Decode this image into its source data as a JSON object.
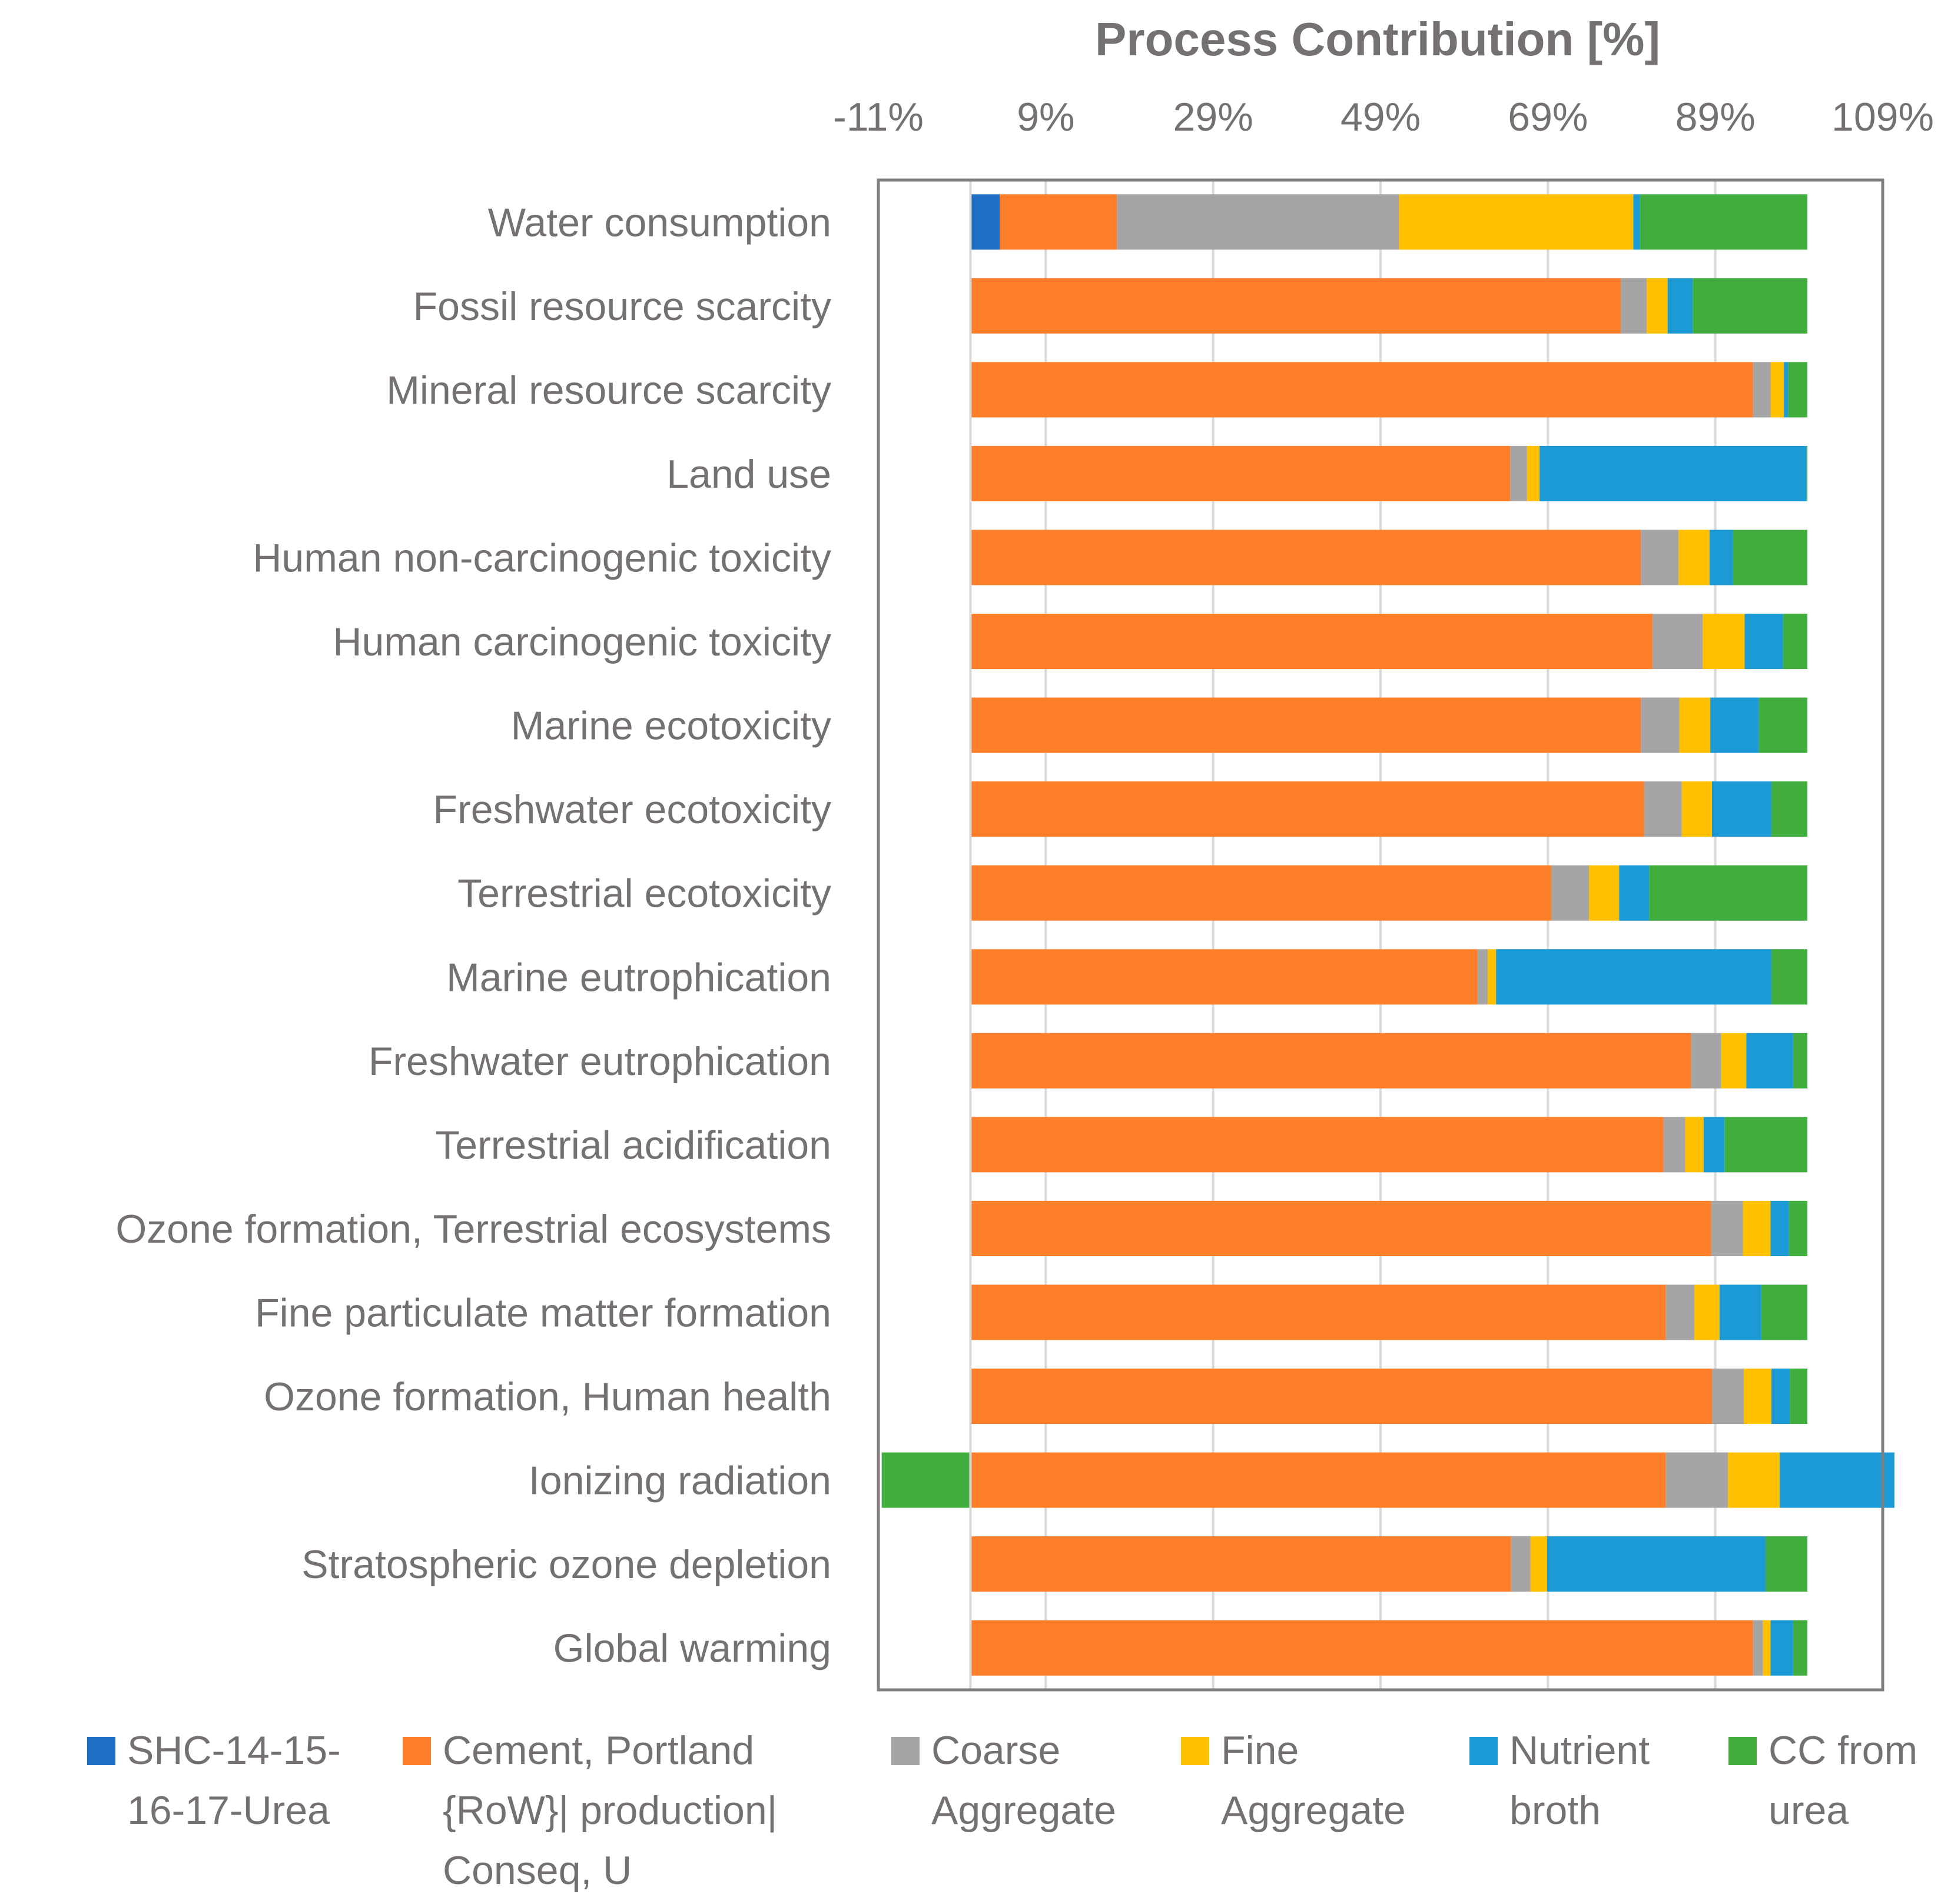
{
  "chart_data": {
    "type": "bar",
    "orientation": "horizontal",
    "stacked": true,
    "title": "Process Contribution [%]",
    "xlabel": "Process Contribution [%]",
    "ylabel": "",
    "x_axis_position": "top",
    "xlim": [
      -11,
      109
    ],
    "xticks": [
      -11,
      9,
      29,
      49,
      69,
      89,
      109
    ],
    "xtick_labels": [
      "-11%",
      "9%",
      "29%",
      "49%",
      "69%",
      "89%",
      "109%"
    ],
    "grid": true,
    "legend_position": "bottom",
    "categories": [
      "Water consumption",
      "Fossil resource scarcity",
      "Mineral resource scarcity",
      "Land use",
      "Human non-carcinogenic toxicity",
      "Human carcinogenic toxicity",
      "Marine ecotoxicity",
      "Freshwater ecotoxicity",
      "Terrestrial ecotoxicity",
      "Marine eutrophication",
      "Freshwater eutrophication",
      "Terrestrial acidification",
      "Ozone formation, Terrestrial ecosystems",
      "Fine particulate matter formation",
      "Ozone formation, Human health",
      "Ionizing radiation",
      "Stratospheric ozone depletion",
      "Global warming"
    ],
    "series": [
      {
        "name": "SHC-14-15-16-17-Urea",
        "color": "#1f6fc5",
        "values": [
          3.5,
          0.1,
          0.1,
          0.1,
          0.1,
          0.1,
          0.1,
          0.1,
          0.1,
          0.1,
          0.1,
          0.1,
          0.1,
          0.1,
          0.1,
          0.1,
          0.1,
          0.1
        ]
      },
      {
        "name": "Cement, Portland {RoW}| production| Conseq, U",
        "color": "#fe7f2a",
        "values": [
          14,
          77.6,
          93.4,
          64.4,
          80,
          81.4,
          80,
          80.4,
          69.3,
          60.5,
          86,
          82.7,
          88.4,
          83,
          88.5,
          83,
          64.5,
          93.4
        ]
      },
      {
        "name": "Coarse Aggregate",
        "color": "#a5a5a5",
        "values": [
          33.7,
          3.1,
          2.1,
          2.0,
          4.5,
          6.0,
          4.6,
          4.5,
          4.5,
          1.2,
          3.6,
          2.6,
          3.8,
          3.4,
          3.8,
          7.4,
          2.3,
          1.2
        ]
      },
      {
        "name": "Fine Aggregate",
        "color": "#ffc000",
        "values": [
          28,
          2.5,
          1.6,
          1.5,
          3.7,
          5.0,
          3.7,
          3.6,
          3.6,
          1.0,
          3.0,
          2.2,
          3.3,
          3.0,
          3.3,
          6.2,
          2.0,
          0.9
        ]
      },
      {
        "name": "Nutrient broth",
        "color": "#1b9ad6",
        "values": [
          0.8,
          3.0,
          0.5,
          31.9,
          2.8,
          4.6,
          5.8,
          7.1,
          3.6,
          32.9,
          5.6,
          2.5,
          2.2,
          5.0,
          2.2,
          13.7,
          26.1,
          2.7
        ]
      },
      {
        "name": "CC from urea",
        "color": "#41ad3e",
        "values": [
          20,
          13.7,
          2.3,
          0.1,
          8.9,
          2.9,
          5.8,
          4.3,
          18.9,
          4.3,
          1.7,
          9.9,
          2.2,
          5.5,
          2.1,
          -10.6,
          5.0,
          1.7
        ]
      }
    ]
  },
  "legend": {
    "items": [
      {
        "lines": [
          "SHC-14-15-",
          "16-17-Urea"
        ]
      },
      {
        "lines": [
          "Cement, Portland",
          "{RoW}| production|",
          "Conseq, U"
        ]
      },
      {
        "lines": [
          "Coarse",
          "Aggregate"
        ]
      },
      {
        "lines": [
          "Fine",
          "Aggregate"
        ]
      },
      {
        "lines": [
          "Nutrient",
          "broth"
        ]
      },
      {
        "lines": [
          "CC from",
          "urea"
        ]
      }
    ]
  }
}
